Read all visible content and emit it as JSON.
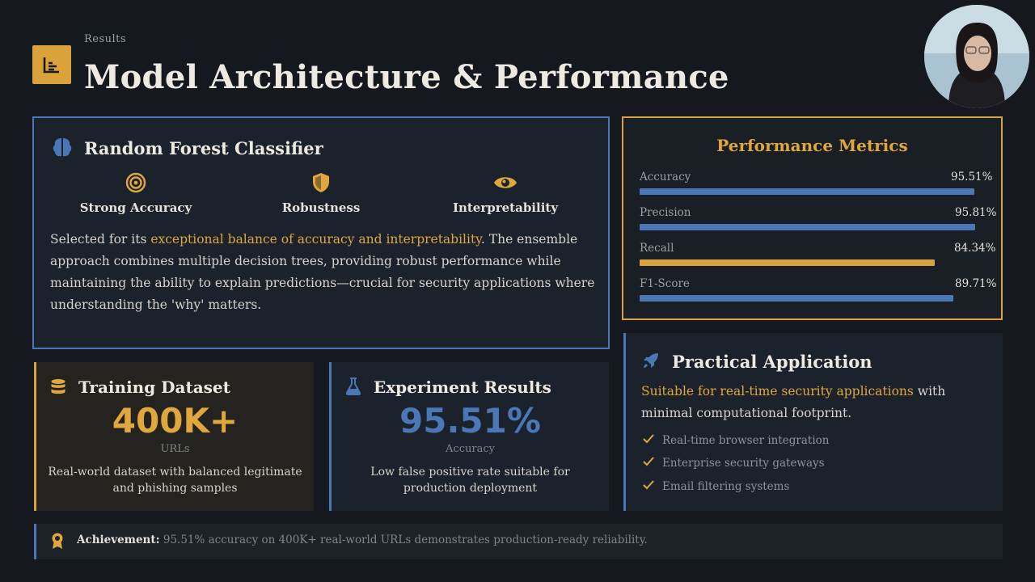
{
  "header": {
    "section_label": "Results",
    "title": "Model Architecture & Performance",
    "icon": "chart-icon"
  },
  "random_forest": {
    "title": "Random Forest Classifier",
    "icon": "brain-icon",
    "features": [
      {
        "label": "Strong Accuracy",
        "icon": "target-icon"
      },
      {
        "label": "Robustness",
        "icon": "shield-icon"
      },
      {
        "label": "Interpretability",
        "icon": "eye-icon"
      }
    ],
    "text_intro": "Selected for its ",
    "text_highlight": "exceptional balance of accuracy and interpretability",
    "text_rest": ". The ensemble approach combines multiple decision trees, providing robust performance while maintaining the ability to explain predictions—crucial for security applications where understanding the 'why' matters."
  },
  "metrics": {
    "title": "Performance Metrics",
    "items": [
      {
        "name": "Accuracy",
        "value": "95.51%",
        "fraction": 0.9551,
        "color": "#4a77b5"
      },
      {
        "name": "Precision",
        "value": "95.81%",
        "fraction": 0.9581,
        "color": "#4a77b5"
      },
      {
        "name": "Recall",
        "value": "84.34%",
        "fraction": 0.8434,
        "color": "#d9a23a"
      },
      {
        "name": "F1-Score",
        "value": "89.71%",
        "fraction": 0.8971,
        "color": "#4a77b5"
      }
    ]
  },
  "training": {
    "title": "Training Dataset",
    "icon": "database-icon",
    "number": "400K+",
    "unit": "URLs",
    "description": "Real-world dataset with balanced legitimate and phishing samples",
    "color": "#e0a73e"
  },
  "experiment": {
    "title": "Experiment Results",
    "icon": "flask-icon",
    "number": "95.51%",
    "unit": "Accuracy",
    "description": "Low false positive rate suitable for production deployment",
    "color": "#4a77b5"
  },
  "application": {
    "title": "Practical Application",
    "icon": "rocket-icon",
    "text_highlight": "Suitable for real-time security applications",
    "text_rest": " with minimal computational footprint.",
    "items": [
      "Real-time browser integration",
      "Enterprise security gateways",
      "Email filtering systems"
    ]
  },
  "achievement": {
    "label": "Achievement:",
    "text": " 95.51% accuracy on 400K+ real-world URLs demonstrates production-ready reliability.",
    "icon": "award-icon"
  }
}
